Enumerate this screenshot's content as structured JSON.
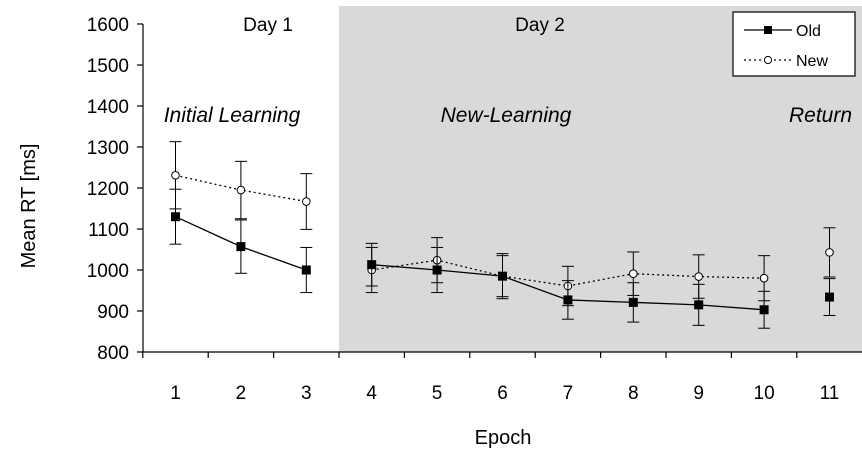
{
  "chart_data": {
    "type": "line",
    "xlabel": "Epoch",
    "ylabel": "Mean RT [ms]",
    "ylim": [
      800,
      1600
    ],
    "yticks": [
      "800",
      "900",
      "1000",
      "1100",
      "1200",
      "1300",
      "1400",
      "1500",
      "1600"
    ],
    "xticks": [
      "1",
      "2",
      "3",
      "4",
      "5",
      "6",
      "7",
      "8",
      "9",
      "10",
      "11"
    ],
    "x": [
      1,
      2,
      3,
      4,
      5,
      6,
      7,
      8,
      9,
      10,
      11
    ],
    "day_labels": [
      "Day 1",
      "Day 2"
    ],
    "phase_labels": [
      "Initial Learning",
      "New-Learning",
      "Return"
    ],
    "shaded_region": {
      "from_epoch": 4,
      "to_epoch": 11,
      "color": "#d9d9d9"
    },
    "legend_position": "top-right",
    "series": [
      {
        "name": "Old",
        "marker": "filled-square",
        "line": "solid",
        "segments": [
          [
            1,
            2,
            3
          ],
          [
            4,
            5,
            6,
            7,
            8,
            9,
            10
          ],
          [
            11
          ]
        ],
        "values": [
          1130,
          1057,
          1000,
          1013,
          1000,
          985,
          927,
          921,
          915,
          903,
          934
        ],
        "error": [
          67,
          65,
          55,
          52,
          55,
          50,
          47,
          48,
          50,
          45,
          45
        ]
      },
      {
        "name": "New",
        "marker": "open-circle",
        "line": "dotted",
        "segments": [
          [
            1,
            2,
            3
          ],
          [
            4,
            5,
            6,
            7,
            8,
            9,
            10
          ],
          [
            11
          ]
        ],
        "values": [
          1231,
          1195,
          1167,
          1000,
          1024,
          985,
          961,
          991,
          984,
          980,
          1043
        ],
        "error": [
          82,
          70,
          68,
          55,
          55,
          55,
          48,
          53,
          53,
          55,
          60
        ]
      }
    ]
  }
}
